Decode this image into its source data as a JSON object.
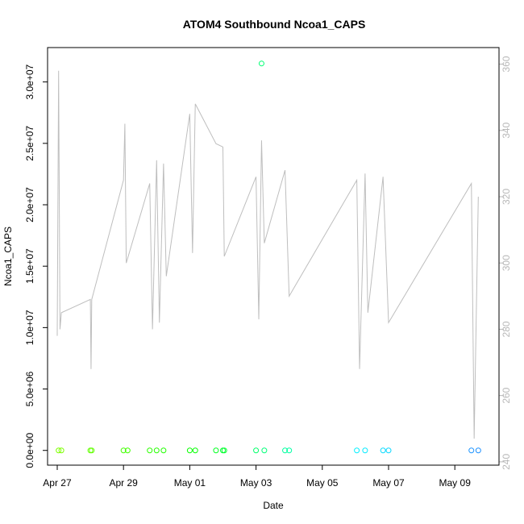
{
  "chart_data": {
    "type": "scatter",
    "title": "ATOM4 Southbound Ncoa1_CAPS",
    "xlabel": "Date",
    "ylabel": "Ncoa1_CAPS",
    "x_axis_type": "date",
    "xlim": [
      "2017-04-26T17:00",
      "2017-05-10T08:00"
    ],
    "ylim": [
      -1200000,
      32800000
    ],
    "y2lim": [
      239,
      365
    ],
    "x_tick_labels": [
      {
        "date": "2017-04-27",
        "label": "Apr 27"
      },
      {
        "date": "2017-04-29",
        "label": "Apr 29"
      },
      {
        "date": "2017-05-01",
        "label": "May 01"
      },
      {
        "date": "2017-05-03",
        "label": "May 03"
      },
      {
        "date": "2017-05-05",
        "label": "May 05"
      },
      {
        "date": "2017-05-07",
        "label": "May 07"
      },
      {
        "date": "2017-05-09",
        "label": "May 09"
      }
    ],
    "y_tick_labels": [
      {
        "value": 0,
        "label": "0.0e+00"
      },
      {
        "value": 5000000,
        "label": "5.0e+06"
      },
      {
        "value": 10000000,
        "label": "1.0e+07"
      },
      {
        "value": 15000000,
        "label": "1.5e+07"
      },
      {
        "value": 20000000,
        "label": "2.0e+07"
      },
      {
        "value": 25000000,
        "label": "2.5e+07"
      },
      {
        "value": 30000000,
        "label": "3.0e+07"
      }
    ],
    "y2_tick_labels": [
      {
        "value": 240,
        "label": "240"
      },
      {
        "value": 260,
        "label": "260"
      },
      {
        "value": 280,
        "label": "280"
      },
      {
        "value": 300,
        "label": "300"
      },
      {
        "value": 320,
        "label": "320"
      },
      {
        "value": 340,
        "label": "340"
      },
      {
        "value": 360,
        "label": "360"
      }
    ],
    "series": [
      {
        "axis": "left",
        "marker": "circle-open",
        "color_gradient": [
          "#7fff00",
          "#00ff00",
          "#00ffff",
          "#1e90ff"
        ],
        "points": [
          {
            "x": "2017-04-27T01:00",
            "y": 0
          },
          {
            "x": "2017-04-27T03:00",
            "y": 0
          },
          {
            "x": "2017-04-28T00:00",
            "y": 0
          },
          {
            "x": "2017-04-28T01:00",
            "y": 0
          },
          {
            "x": "2017-04-29T00:00",
            "y": 0
          },
          {
            "x": "2017-04-29T03:00",
            "y": 0
          },
          {
            "x": "2017-04-29T19:00",
            "y": 0
          },
          {
            "x": "2017-04-30T00:00",
            "y": 0
          },
          {
            "x": "2017-04-30T05:00",
            "y": 0
          },
          {
            "x": "2017-05-01T00:00",
            "y": 0
          },
          {
            "x": "2017-05-01T04:00",
            "y": 0
          },
          {
            "x": "2017-05-01T19:00",
            "y": 0
          },
          {
            "x": "2017-05-02T00:00",
            "y": 0
          },
          {
            "x": "2017-05-02T01:00",
            "y": 0
          },
          {
            "x": "2017-05-03T00:00",
            "y": 0
          },
          {
            "x": "2017-05-03T06:00",
            "y": 0
          },
          {
            "x": "2017-05-03T21:00",
            "y": 0
          },
          {
            "x": "2017-05-04T00:00",
            "y": 0
          },
          {
            "x": "2017-05-06T01:00",
            "y": 0
          },
          {
            "x": "2017-05-06T07:00",
            "y": 0
          },
          {
            "x": "2017-05-06T20:00",
            "y": 0
          },
          {
            "x": "2017-05-07T00:00",
            "y": 0
          },
          {
            "x": "2017-05-09T12:00",
            "y": 0
          },
          {
            "x": "2017-05-09T17:00",
            "y": 0
          },
          {
            "x": "2017-05-03T04:00",
            "y": 31500000
          }
        ]
      },
      {
        "axis": "right",
        "color": "#bebebe",
        "type": "line",
        "points": [
          {
            "x": "2017-04-27T00:00",
            "y": 278
          },
          {
            "x": "2017-04-27T01:00",
            "y": 358
          },
          {
            "x": "2017-04-27T02:00",
            "y": 280
          },
          {
            "x": "2017-04-27T03:00",
            "y": 285
          },
          {
            "x": "2017-04-28T00:00",
            "y": 289
          },
          {
            "x": "2017-04-28T00:30",
            "y": 268
          },
          {
            "x": "2017-04-28T01:00",
            "y": 289
          },
          {
            "x": "2017-04-29T00:00",
            "y": 325
          },
          {
            "x": "2017-04-29T01:00",
            "y": 342
          },
          {
            "x": "2017-04-29T02:00",
            "y": 300
          },
          {
            "x": "2017-04-29T19:00",
            "y": 324
          },
          {
            "x": "2017-04-29T21:00",
            "y": 280
          },
          {
            "x": "2017-04-30T00:00",
            "y": 331
          },
          {
            "x": "2017-04-30T02:00",
            "y": 282
          },
          {
            "x": "2017-04-30T05:00",
            "y": 330
          },
          {
            "x": "2017-04-30T07:00",
            "y": 296
          },
          {
            "x": "2017-05-01T00:00",
            "y": 345
          },
          {
            "x": "2017-05-01T02:00",
            "y": 303
          },
          {
            "x": "2017-05-01T04:00",
            "y": 348
          },
          {
            "x": "2017-05-01T19:00",
            "y": 336
          },
          {
            "x": "2017-05-02T00:00",
            "y": 335
          },
          {
            "x": "2017-05-02T01:00",
            "y": 302
          },
          {
            "x": "2017-05-03T00:00",
            "y": 326
          },
          {
            "x": "2017-05-03T02:00",
            "y": 283
          },
          {
            "x": "2017-05-03T04:00",
            "y": 337
          },
          {
            "x": "2017-05-03T06:00",
            "y": 306
          },
          {
            "x": "2017-05-03T21:00",
            "y": 328
          },
          {
            "x": "2017-05-04T00:00",
            "y": 290
          },
          {
            "x": "2017-05-06T01:00",
            "y": 325
          },
          {
            "x": "2017-05-06T03:00",
            "y": 268
          },
          {
            "x": "2017-05-06T07:00",
            "y": 327
          },
          {
            "x": "2017-05-06T09:00",
            "y": 285
          },
          {
            "x": "2017-05-06T20:00",
            "y": 326
          },
          {
            "x": "2017-05-07T00:00",
            "y": 282
          },
          {
            "x": "2017-05-09T12:00",
            "y": 324
          },
          {
            "x": "2017-05-09T14:00",
            "y": 247
          },
          {
            "x": "2017-05-09T17:00",
            "y": 320
          }
        ]
      }
    ]
  }
}
